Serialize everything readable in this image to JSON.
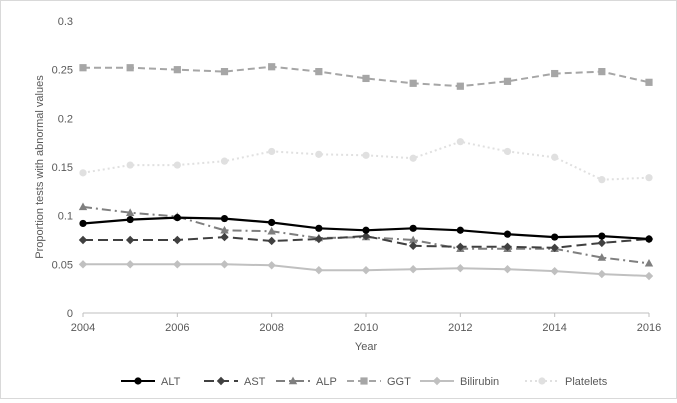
{
  "chart_data": {
    "type": "line",
    "title": "",
    "xlabel": "Year",
    "ylabel": "Proportion tests with abnormal values",
    "x": [
      2004,
      2005,
      2006,
      2007,
      2008,
      2009,
      2010,
      2011,
      2012,
      2013,
      2014,
      2015,
      2016
    ],
    "xlim": [
      2004,
      2016
    ],
    "ylim": [
      0,
      0.3
    ],
    "x_ticks": [
      "2004",
      "2006",
      "2008",
      "2010",
      "2012",
      "2014",
      "2016"
    ],
    "y_ticks": [
      "0",
      "0.05",
      "0.1",
      "0.15",
      "0.2",
      "0.25",
      "0.3"
    ],
    "grid": false,
    "legend_position": "bottom",
    "series": [
      {
        "name": "ALT",
        "color": "#000000",
        "dash": "solid",
        "marker": "circle",
        "values": [
          0.092,
          0.096,
          0.098,
          0.097,
          0.093,
          0.087,
          0.085,
          0.087,
          0.085,
          0.081,
          0.078,
          0.079,
          0.076
        ]
      },
      {
        "name": "AST",
        "color": "#404040",
        "dash": "longdash",
        "marker": "diamond",
        "values": [
          0.075,
          0.075,
          0.075,
          0.078,
          0.074,
          0.076,
          0.079,
          0.069,
          0.068,
          0.068,
          0.067,
          0.072,
          0.076
        ]
      },
      {
        "name": "ALP",
        "color": "#7f7f7f",
        "dash": "dashdot",
        "marker": "triangle",
        "values": [
          0.109,
          0.103,
          0.099,
          0.085,
          0.084,
          0.077,
          0.078,
          0.075,
          0.066,
          0.066,
          0.066,
          0.057,
          0.051
        ]
      },
      {
        "name": "GGT",
        "color": "#a6a6a6",
        "dash": "dash",
        "marker": "square",
        "values": [
          0.252,
          0.252,
          0.25,
          0.248,
          0.253,
          0.248,
          0.241,
          0.236,
          0.233,
          0.238,
          0.246,
          0.248,
          0.237
        ]
      },
      {
        "name": "Bilirubin",
        "color": "#c0c0c0",
        "dash": "solid",
        "marker": "diamond",
        "values": [
          0.05,
          0.05,
          0.05,
          0.05,
          0.049,
          0.044,
          0.044,
          0.045,
          0.046,
          0.045,
          0.043,
          0.04,
          0.038
        ]
      },
      {
        "name": "Platelets",
        "color": "#e0e0e0",
        "dash": "dot",
        "marker": "circle",
        "values": [
          0.144,
          0.152,
          0.152,
          0.156,
          0.166,
          0.163,
          0.162,
          0.159,
          0.176,
          0.166,
          0.16,
          0.137,
          0.139
        ]
      }
    ]
  }
}
